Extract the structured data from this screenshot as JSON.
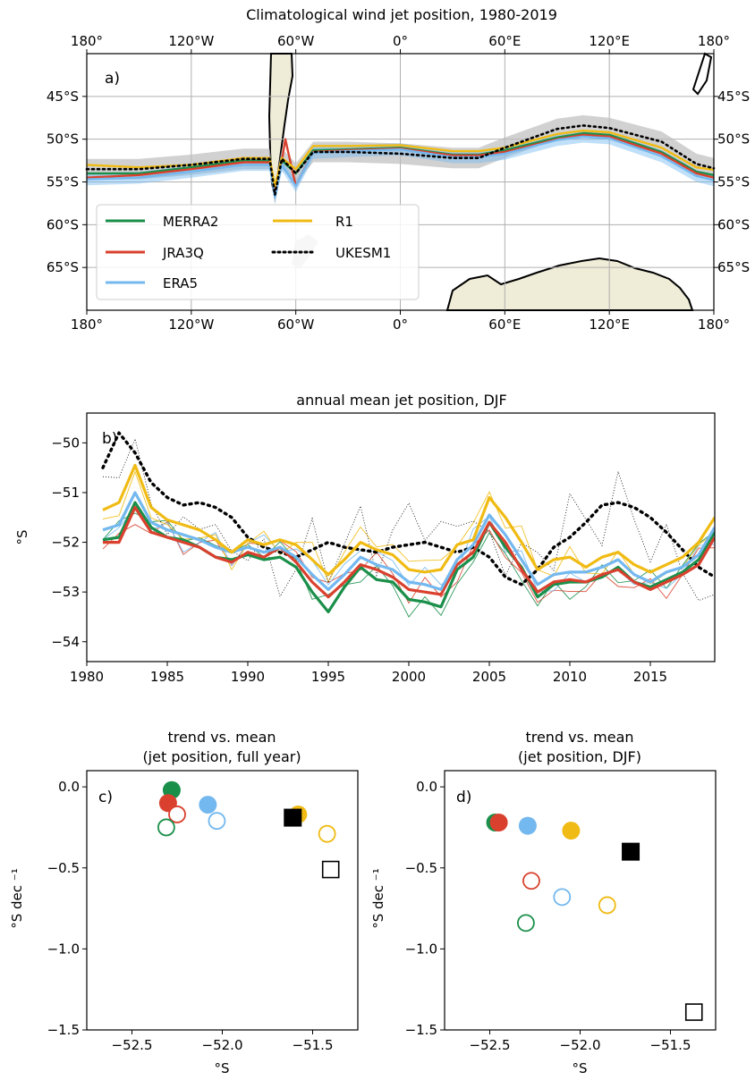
{
  "colors": {
    "MERRA2": "#1a8f4a",
    "JRA3Q": "#d9412e",
    "ERA5": "#73b8ef",
    "R1": "#f0bb14",
    "UKESM1": "#000000",
    "land": "#efecd8",
    "ukesm_shade": "#bdbdbd"
  },
  "panel_a": {
    "title": "Climatological wind jet position, 1980-2019",
    "label": "a)",
    "xticks": [
      "180°",
      "120°W",
      "60°W",
      "0°",
      "60°E",
      "120°E",
      "180°"
    ],
    "yticks": [
      "45°S",
      "50°S",
      "55°S",
      "60°S",
      "65°S"
    ],
    "legend": [
      "MERRA2",
      "JRA3Q",
      "ERA5",
      "R1",
      "UKESM1"
    ]
  },
  "panel_b": {
    "title": "annual mean jet position, DJF",
    "label": "b)",
    "ylabel": "°S",
    "xticks": [
      "1980",
      "1985",
      "1990",
      "1995",
      "2000",
      "2005",
      "2010",
      "2015"
    ],
    "yticks": [
      "−50",
      "−51",
      "−52",
      "−53",
      "−54"
    ]
  },
  "panel_c": {
    "title_line1": "trend vs. mean",
    "title_line2": "(jet position, full year)",
    "label": "c)",
    "ylabel": "°S dec ⁻¹",
    "xlabel": "°S",
    "xticks": [
      "−52.5",
      "−52.0",
      "−51.5"
    ],
    "yticks": [
      "0.0",
      "−0.5",
      "−1.0",
      "−1.5"
    ]
  },
  "panel_d": {
    "title_line1": "trend vs. mean",
    "title_line2": "(jet position, DJF)",
    "label": "d)",
    "ylabel": "°S dec ⁻¹",
    "xlabel": "°S",
    "xticks": [
      "−52.5",
      "−52.0",
      "−51.5"
    ],
    "yticks": [
      "0.0",
      "−0.5",
      "−1.0",
      "−1.5"
    ]
  },
  "chart_data": [
    {
      "type": "line",
      "panel": "a",
      "title": "Climatological wind jet position, 1980-2019",
      "x_unit": "longitude (deg E)",
      "xlim": [
        -180,
        180
      ],
      "ylim": [
        -70,
        -40
      ],
      "grid": true,
      "legend_position": "lower-left",
      "series": [
        {
          "name": "MERRA2",
          "x": [
            -180,
            -150,
            -120,
            -90,
            -75,
            -72,
            -68,
            -60,
            -50,
            -30,
            0,
            30,
            45,
            60,
            90,
            105,
            120,
            150,
            170,
            180
          ],
          "y": [
            -54.0,
            -54.0,
            -53.3,
            -52.5,
            -52.5,
            -56.0,
            -52.5,
            -54.0,
            -51.3,
            -51.2,
            -51.0,
            -51.8,
            -51.8,
            -51.3,
            -49.8,
            -49.3,
            -49.5,
            -51.5,
            -53.8,
            -54.2
          ]
        },
        {
          "name": "JRA3Q",
          "x": [
            -180,
            -150,
            -120,
            -90,
            -75,
            -72,
            -68,
            -66,
            -60,
            -50,
            -30,
            0,
            30,
            45,
            60,
            90,
            105,
            120,
            150,
            170,
            180
          ],
          "y": [
            -54.5,
            -54.2,
            -53.5,
            -52.7,
            -52.7,
            -56.3,
            -52.5,
            -50.0,
            -55.5,
            -51.5,
            -51.3,
            -51.1,
            -51.9,
            -51.9,
            -51.5,
            -50.0,
            -49.5,
            -49.7,
            -51.7,
            -54.0,
            -54.5
          ]
        },
        {
          "name": "ERA5",
          "x": [
            -180,
            -150,
            -120,
            -90,
            -75,
            -72,
            -68,
            -60,
            -50,
            -30,
            0,
            30,
            45,
            60,
            90,
            105,
            120,
            150,
            170,
            180
          ],
          "y": [
            -54.7,
            -54.5,
            -53.8,
            -53.0,
            -53.0,
            -56.8,
            -53.0,
            -55.5,
            -51.6,
            -51.4,
            -51.2,
            -52.1,
            -52.1,
            -51.7,
            -50.1,
            -49.7,
            -49.9,
            -52.0,
            -54.3,
            -54.8
          ]
        },
        {
          "name": "R1",
          "x": [
            -180,
            -150,
            -120,
            -90,
            -75,
            -72,
            -68,
            -60,
            -50,
            -30,
            0,
            30,
            45,
            60,
            90,
            105,
            120,
            150,
            170,
            180
          ],
          "y": [
            -53.0,
            -53.3,
            -53.0,
            -52.2,
            -52.2,
            -55.5,
            -52.2,
            -53.5,
            -50.8,
            -50.8,
            -50.7,
            -51.4,
            -51.4,
            -51.0,
            -49.4,
            -49.0,
            -49.2,
            -51.0,
            -53.3,
            -53.6
          ]
        },
        {
          "name": "UKESM1",
          "x": [
            -180,
            -150,
            -120,
            -90,
            -75,
            -72,
            -68,
            -60,
            -50,
            -30,
            0,
            30,
            45,
            60,
            90,
            105,
            120,
            150,
            170,
            180
          ],
          "y": [
            -53.5,
            -53.5,
            -53.0,
            -52.3,
            -52.3,
            -56.5,
            -52.3,
            -54.0,
            -51.5,
            -51.5,
            -51.7,
            -52.2,
            -52.2,
            -51.0,
            -48.8,
            -48.4,
            -48.7,
            -50.3,
            -52.9,
            -53.4
          ]
        }
      ]
    },
    {
      "type": "line",
      "panel": "b",
      "title": "annual mean jet position, DJF",
      "ylabel": "°S",
      "xlim": [
        1980,
        2019
      ],
      "ylim": [
        -54.4,
        -49.4
      ],
      "x": [
        1981,
        1982,
        1983,
        1984,
        1985,
        1986,
        1987,
        1988,
        1989,
        1990,
        1991,
        1992,
        1993,
        1994,
        1995,
        1996,
        1997,
        1998,
        1999,
        2000,
        2001,
        2002,
        2003,
        2004,
        2005,
        2006,
        2007,
        2008,
        2009,
        2010,
        2011,
        2012,
        2013,
        2014,
        2015,
        2016,
        2017,
        2018,
        2019
      ],
      "series": [
        {
          "name": "MERRA2",
          "values": [
            -51.95,
            -51.9,
            -51.2,
            -51.7,
            -51.9,
            -51.95,
            -52.1,
            -52.3,
            -52.35,
            -52.25,
            -52.35,
            -52.3,
            -52.5,
            -53.0,
            -53.4,
            -52.9,
            -52.5,
            -52.75,
            -52.8,
            -53.15,
            -53.2,
            -53.3,
            -52.55,
            -52.3,
            -51.6,
            -52.1,
            -52.5,
            -53.1,
            -52.85,
            -52.8,
            -52.8,
            -52.7,
            -52.5,
            -52.8,
            -52.9,
            -52.75,
            -52.6,
            -52.35,
            -51.8
          ]
        },
        {
          "name": "JRA3Q",
          "values": [
            -52.0,
            -52.0,
            -51.3,
            -51.8,
            -51.9,
            -52.0,
            -52.1,
            -52.3,
            -52.4,
            -52.2,
            -52.3,
            -52.1,
            -52.4,
            -52.8,
            -53.1,
            -52.8,
            -52.45,
            -52.55,
            -52.7,
            -52.95,
            -53.0,
            -53.05,
            -52.45,
            -52.2,
            -51.6,
            -52.0,
            -52.55,
            -53.0,
            -52.8,
            -52.75,
            -52.8,
            -52.65,
            -52.55,
            -52.8,
            -52.95,
            -52.8,
            -52.65,
            -52.45,
            -51.9
          ]
        },
        {
          "name": "ERA5",
          "values": [
            -51.75,
            -51.65,
            -51.0,
            -51.6,
            -51.75,
            -51.85,
            -51.95,
            -52.1,
            -52.2,
            -52.1,
            -52.2,
            -52.1,
            -52.3,
            -52.65,
            -52.95,
            -52.65,
            -52.3,
            -52.45,
            -52.55,
            -52.8,
            -52.85,
            -52.95,
            -52.35,
            -52.05,
            -51.45,
            -51.85,
            -52.35,
            -52.85,
            -52.65,
            -52.6,
            -52.6,
            -52.5,
            -52.35,
            -52.65,
            -52.8,
            -52.6,
            -52.5,
            -52.25,
            -51.7
          ]
        },
        {
          "name": "R1",
          "values": [
            -51.35,
            -51.2,
            -50.45,
            -51.3,
            -51.55,
            -51.65,
            -51.75,
            -51.95,
            -52.2,
            -51.95,
            -52.05,
            -51.95,
            -52.05,
            -52.35,
            -52.65,
            -52.35,
            -52.0,
            -52.15,
            -52.25,
            -52.55,
            -52.6,
            -52.55,
            -52.05,
            -51.95,
            -51.1,
            -51.5,
            -52.0,
            -52.55,
            -52.35,
            -52.3,
            -52.5,
            -52.3,
            -52.2,
            -52.45,
            -52.6,
            -52.45,
            -52.3,
            -52.0,
            -51.5
          ]
        },
        {
          "name": "UKESM1",
          "values": [
            -50.5,
            -49.8,
            -50.2,
            -50.8,
            -51.1,
            -51.25,
            -51.2,
            -51.3,
            -51.5,
            -51.9,
            -52.1,
            -52.2,
            -52.3,
            -52.15,
            -52.0,
            -52.1,
            -52.15,
            -52.2,
            -52.1,
            -52.05,
            -52.0,
            -52.1,
            -52.2,
            -52.1,
            -52.3,
            -52.7,
            -52.85,
            -52.55,
            -52.1,
            -51.9,
            -51.6,
            -51.25,
            -51.2,
            -51.3,
            -51.5,
            -51.8,
            -52.15,
            -52.5,
            -52.7
          ]
        }
      ]
    },
    {
      "type": "scatter",
      "panel": "c",
      "title": "trend vs. mean\n(jet position, full year)",
      "xlabel": "°S",
      "ylabel": "°S dec ⁻¹",
      "xlim": [
        -52.75,
        -51.25
      ],
      "ylim": [
        -1.5,
        0.1
      ],
      "points": [
        {
          "series": "MERRA2",
          "marker": "filled-circle",
          "x": -52.28,
          "y": -0.02
        },
        {
          "series": "JRA3Q",
          "marker": "filled-circle",
          "x": -52.3,
          "y": -0.1
        },
        {
          "series": "ERA5",
          "marker": "filled-circle",
          "x": -52.08,
          "y": -0.11
        },
        {
          "series": "R1",
          "marker": "filled-circle",
          "x": -51.58,
          "y": -0.17
        },
        {
          "series": "UKESM1",
          "marker": "filled-square",
          "x": -51.61,
          "y": -0.19
        },
        {
          "series": "JRA3Q",
          "marker": "open-circle",
          "x": -52.25,
          "y": -0.17
        },
        {
          "series": "ERA5",
          "marker": "open-circle",
          "x": -52.03,
          "y": -0.21
        },
        {
          "series": "MERRA2",
          "marker": "open-circle",
          "x": -52.31,
          "y": -0.25
        },
        {
          "series": "R1",
          "marker": "open-circle",
          "x": -51.42,
          "y": -0.29
        },
        {
          "series": "UKESM1",
          "marker": "open-square",
          "x": -51.4,
          "y": -0.51
        }
      ]
    },
    {
      "type": "scatter",
      "panel": "d",
      "title": "trend vs. mean\n(jet position, DJF)",
      "xlabel": "°S",
      "ylabel": "°S dec ⁻¹",
      "xlim": [
        -52.75,
        -51.25
      ],
      "ylim": [
        -1.5,
        0.1
      ],
      "points": [
        {
          "series": "MERRA2",
          "marker": "filled-circle",
          "x": -52.47,
          "y": -0.22
        },
        {
          "series": "JRA3Q",
          "marker": "filled-circle",
          "x": -52.45,
          "y": -0.22
        },
        {
          "series": "ERA5",
          "marker": "filled-circle",
          "x": -52.29,
          "y": -0.24
        },
        {
          "series": "R1",
          "marker": "filled-circle",
          "x": -52.05,
          "y": -0.27
        },
        {
          "series": "UKESM1",
          "marker": "filled-square",
          "x": -51.72,
          "y": -0.4
        },
        {
          "series": "JRA3Q",
          "marker": "open-circle",
          "x": -52.27,
          "y": -0.58
        },
        {
          "series": "ERA5",
          "marker": "open-circle",
          "x": -52.1,
          "y": -0.68
        },
        {
          "series": "R1",
          "marker": "open-circle",
          "x": -51.85,
          "y": -0.73
        },
        {
          "series": "MERRA2",
          "marker": "open-circle",
          "x": -52.3,
          "y": -0.84
        },
        {
          "series": "UKESM1",
          "marker": "open-square",
          "x": -51.37,
          "y": -1.39
        }
      ]
    }
  ]
}
